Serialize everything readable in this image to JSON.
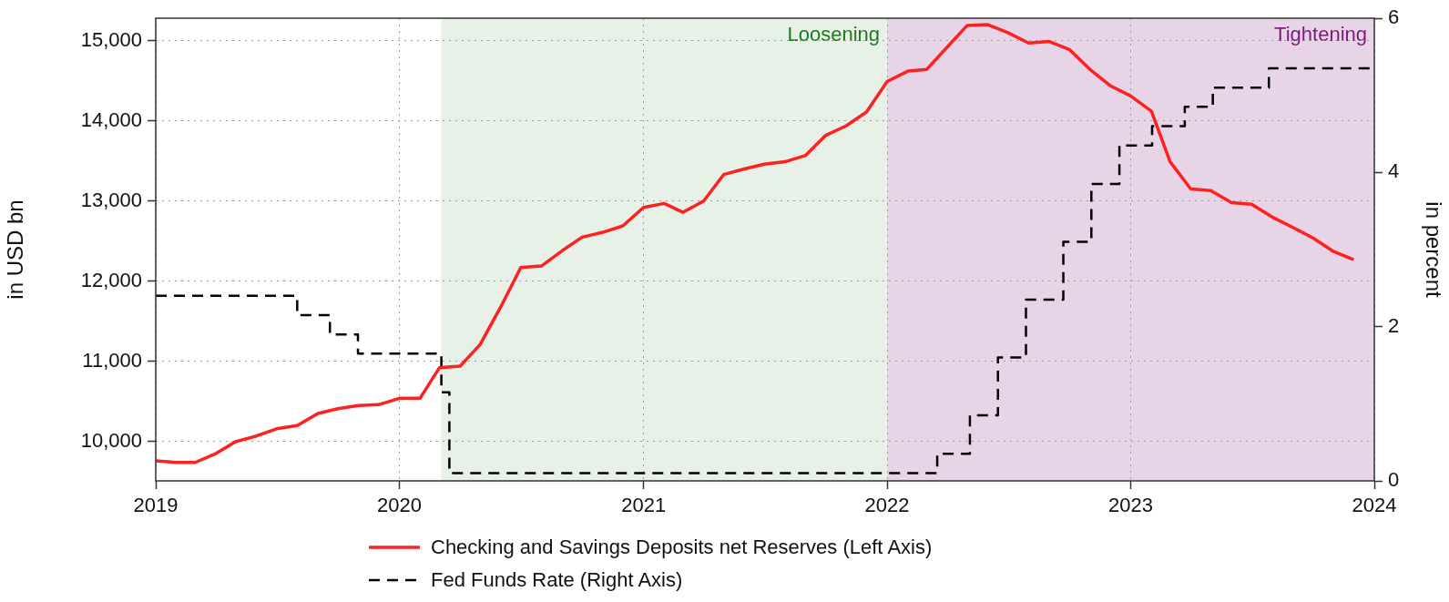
{
  "chart_data": {
    "type": "line",
    "ylabel": "in USD bn",
    "y2label": "in percent",
    "xlim": [
      "2019",
      "2024"
    ],
    "xticks": [
      "2019",
      "2020",
      "2021",
      "2022",
      "2023",
      "2024"
    ],
    "ylim": [
      9510,
      15280
    ],
    "yticks": [
      {
        "value": 10000,
        "label": "10,000"
      },
      {
        "value": 11000,
        "label": "11,000"
      },
      {
        "value": 12000,
        "label": "12,000"
      },
      {
        "value": 13000,
        "label": "13,000"
      },
      {
        "value": 14000,
        "label": "14,000"
      },
      {
        "value": 15000,
        "label": "15,000"
      }
    ],
    "y2lim": [
      0,
      6
    ],
    "y2ticks": [
      0,
      2,
      4,
      6
    ],
    "grid": true,
    "legend": "bottom",
    "marker": "none",
    "bands": [
      {
        "axis": "x",
        "from": "2020-03-04",
        "to": "2022-01",
        "label": "Loosening",
        "color": "#e7f1e8"
      },
      {
        "axis": "x",
        "from": "2022-01",
        "to": "2024",
        "label": "Tightening",
        "color": "#e8d4e7"
      }
    ],
    "series": [
      {
        "name": "Checking and Savings Deposits net Reserves (Left Axis)",
        "color": "#ff2020",
        "line_style": "solid",
        "x": [
          "2019-01",
          "2019-02",
          "2019-03",
          "2019-04",
          "2019-05",
          "2019-06",
          "2019-07",
          "2019-08",
          "2019-09",
          "2019-10",
          "2019-11",
          "2019-12",
          "2020-01",
          "2020-02",
          "2020-03",
          "2020-04",
          "2020-05",
          "2020-06",
          "2020-07",
          "2020-08",
          "2020-09",
          "2020-10",
          "2020-11",
          "2020-12",
          "2021-01",
          "2021-02",
          "2021-03",
          "2021-04",
          "2021-05",
          "2021-06",
          "2021-07",
          "2021-08",
          "2021-09",
          "2021-10",
          "2021-11",
          "2021-12",
          "2022-01",
          "2022-02",
          "2022-03",
          "2022-04",
          "2022-05",
          "2022-06",
          "2022-07",
          "2022-08",
          "2022-09",
          "2022-10",
          "2022-11",
          "2022-12",
          "2023-01",
          "2023-02",
          "2023-03",
          "2023-04",
          "2023-05",
          "2023-06",
          "2023-07",
          "2023-08",
          "2023-09",
          "2023-10",
          "2023-11",
          "2023-12"
        ],
        "values": [
          9760,
          9740,
          9740,
          9850,
          10000,
          10070,
          10160,
          10200,
          10350,
          10410,
          10450,
          10460,
          10540,
          10540,
          10920,
          10940,
          11210,
          11680,
          12170,
          12190,
          12380,
          12550,
          12610,
          12690,
          12920,
          12970,
          12860,
          13000,
          13330,
          13400,
          13460,
          13490,
          13570,
          13820,
          13940,
          14110,
          14490,
          14620,
          14640,
          14920,
          15190,
          15200,
          15100,
          14970,
          14990,
          14890,
          14640,
          14440,
          14310,
          14120,
          13490,
          13150,
          13130,
          12980,
          12960,
          12800,
          12670,
          12540,
          12370,
          12270
        ]
      },
      {
        "name": "Fed Funds Rate (Right Axis)",
        "type": "step",
        "axis": "y2",
        "color": "#000000",
        "line_style": "dashed",
        "x": [
          "2019-01-01",
          "2019-08-01",
          "2019-09-19",
          "2019-10-31",
          "2020-03-04",
          "2020-03-16",
          "2022-03-17",
          "2022-05-05",
          "2022-06-16",
          "2022-07-28",
          "2022-09-22",
          "2022-11-03",
          "2022-12-15",
          "2023-02-02",
          "2023-03-23",
          "2023-05-04",
          "2023-07-27",
          "2023-12-31"
        ],
        "values": [
          2.4,
          2.15,
          1.9,
          1.65,
          1.15,
          0.1,
          0.35,
          0.85,
          1.6,
          2.35,
          3.1,
          3.85,
          4.35,
          4.6,
          4.85,
          5.1,
          5.35,
          5.35
        ]
      }
    ]
  }
}
